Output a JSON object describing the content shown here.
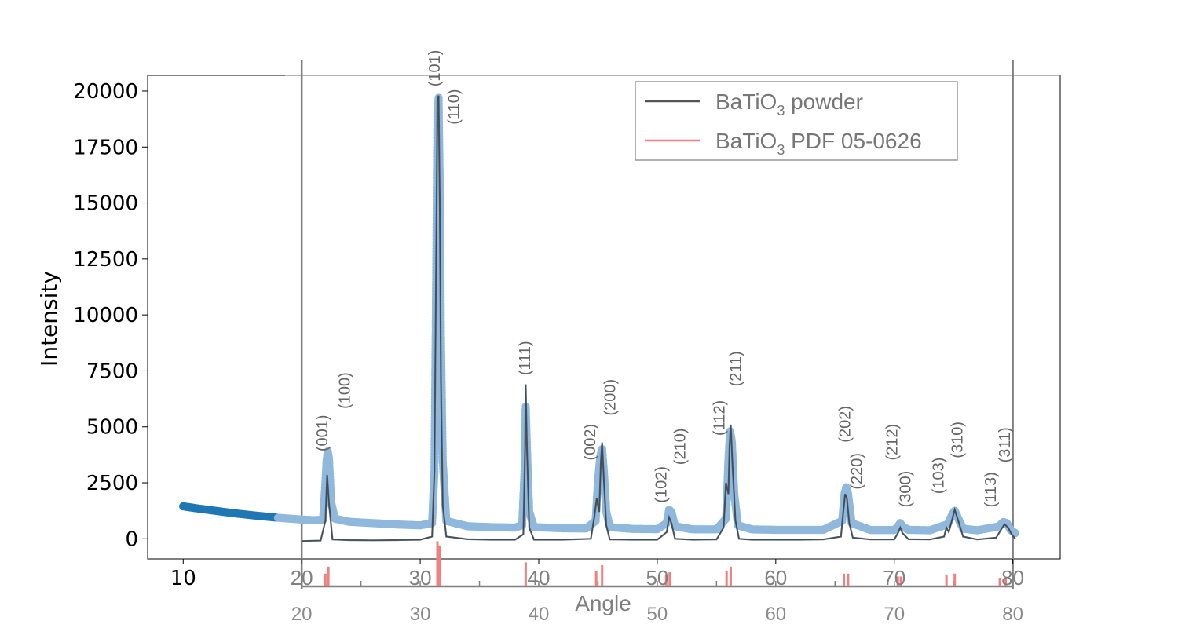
{
  "chart_data": {
    "type": "scatter",
    "title": "",
    "xlabel": "Angle",
    "ylabel": "Intensity",
    "xlim": [
      7,
      84
    ],
    "ylim": [
      -900,
      20700
    ],
    "xticks": [
      10,
      20,
      30,
      40,
      50,
      60,
      70,
      80
    ],
    "yticks": [
      0,
      2500,
      5000,
      7500,
      10000,
      12500,
      15000,
      17500,
      20000
    ],
    "bottom_axis_ticks": [
      20,
      30,
      40,
      50,
      60,
      70,
      80
    ],
    "legend": {
      "position": "top-right",
      "entries": [
        {
          "label_main": "BaTiO",
          "label_sub": "3",
          "label_rest": " powder",
          "color": "#555555"
        },
        {
          "label_main": "BaTiO",
          "label_sub": "3",
          "label_rest": " PDF 05-0626",
          "color": "#f08080"
        }
      ]
    },
    "series": [
      {
        "role": "measured-points",
        "colors": {
          "dark": "#1f77b4",
          "light": "#8fb8dc",
          "split_x": 18
        },
        "points": [
          [
            10,
            1450
          ],
          [
            11,
            1370
          ],
          [
            12,
            1300
          ],
          [
            13,
            1230
          ],
          [
            14,
            1160
          ],
          [
            15,
            1100
          ],
          [
            16,
            1040
          ],
          [
            17,
            990
          ],
          [
            18,
            940
          ],
          [
            19,
            900
          ],
          [
            20,
            860
          ],
          [
            21,
            830
          ],
          [
            21.8,
            850
          ],
          [
            22.0,
            2500
          ],
          [
            22.1,
            3500
          ],
          [
            22.2,
            3900
          ],
          [
            22.3,
            3600
          ],
          [
            22.5,
            1600
          ],
          [
            22.8,
            900
          ],
          [
            24,
            760
          ],
          [
            26,
            700
          ],
          [
            28,
            640
          ],
          [
            30,
            600
          ],
          [
            31.0,
            700
          ],
          [
            31.2,
            3000
          ],
          [
            31.35,
            12000
          ],
          [
            31.45,
            19000
          ],
          [
            31.55,
            19700
          ],
          [
            31.65,
            16000
          ],
          [
            31.75,
            9000
          ],
          [
            31.9,
            3500
          ],
          [
            32.2,
            800
          ],
          [
            34,
            560
          ],
          [
            36,
            520
          ],
          [
            38,
            500
          ],
          [
            38.6,
            600
          ],
          [
            38.8,
            3000
          ],
          [
            38.9,
            5900
          ],
          [
            39.0,
            4200
          ],
          [
            39.2,
            1200
          ],
          [
            39.6,
            520
          ],
          [
            42,
            470
          ],
          [
            44,
            460
          ],
          [
            44.8,
            800
          ],
          [
            45.0,
            2600
          ],
          [
            45.2,
            3700
          ],
          [
            45.35,
            4000
          ],
          [
            45.5,
            3000
          ],
          [
            45.7,
            1200
          ],
          [
            46,
            520
          ],
          [
            48,
            440
          ],
          [
            50,
            430
          ],
          [
            50.8,
            700
          ],
          [
            51.0,
            1300
          ],
          [
            51.2,
            1200
          ],
          [
            51.5,
            560
          ],
          [
            53,
            420
          ],
          [
            55,
            420
          ],
          [
            55.8,
            900
          ],
          [
            56.0,
            3500
          ],
          [
            56.15,
            4800
          ],
          [
            56.3,
            4300
          ],
          [
            56.5,
            2000
          ],
          [
            56.8,
            600
          ],
          [
            58,
            420
          ],
          [
            60,
            400
          ],
          [
            62,
            400
          ],
          [
            64,
            400
          ],
          [
            65.6,
            800
          ],
          [
            65.8,
            2000
          ],
          [
            65.95,
            2300
          ],
          [
            66.1,
            2000
          ],
          [
            66.4,
            700
          ],
          [
            68,
            390
          ],
          [
            70,
            390
          ],
          [
            70.3,
            550
          ],
          [
            70.5,
            700
          ],
          [
            70.7,
            550
          ],
          [
            71.2,
            400
          ],
          [
            73,
            380
          ],
          [
            74.5,
            650
          ],
          [
            74.9,
            1100
          ],
          [
            75.1,
            1250
          ],
          [
            75.4,
            900
          ],
          [
            75.8,
            450
          ],
          [
            77,
            380
          ],
          [
            78.8,
            550
          ],
          [
            79.2,
            750
          ],
          [
            79.5,
            700
          ],
          [
            79.8,
            400
          ],
          [
            80.2,
            250
          ]
        ]
      },
      {
        "role": "powder-line",
        "name": "BaTiO3 powder",
        "color": "#555555",
        "points": [
          [
            20,
            -100
          ],
          [
            21.6,
            -80
          ],
          [
            22.0,
            800
          ],
          [
            22.15,
            2850
          ],
          [
            22.3,
            1600
          ],
          [
            22.6,
            -30
          ],
          [
            24,
            -60
          ],
          [
            26,
            -70
          ],
          [
            28,
            -60
          ],
          [
            30,
            -40
          ],
          [
            31.0,
            100
          ],
          [
            31.2,
            3000
          ],
          [
            31.35,
            13000
          ],
          [
            31.45,
            19600
          ],
          [
            31.55,
            19800
          ],
          [
            31.65,
            15000
          ],
          [
            31.75,
            7000
          ],
          [
            31.9,
            1500
          ],
          [
            32.2,
            100
          ],
          [
            34,
            -20
          ],
          [
            36,
            -40
          ],
          [
            38,
            -40
          ],
          [
            38.7,
            200
          ],
          [
            38.85,
            4000
          ],
          [
            38.9,
            6900
          ],
          [
            39.0,
            4200
          ],
          [
            39.2,
            500
          ],
          [
            39.6,
            -40
          ],
          [
            42,
            -40
          ],
          [
            44.4,
            0
          ],
          [
            44.7,
            1000
          ],
          [
            44.9,
            1800
          ],
          [
            45.1,
            1200
          ],
          [
            45.25,
            3500
          ],
          [
            45.35,
            4300
          ],
          [
            45.5,
            2600
          ],
          [
            45.7,
            600
          ],
          [
            46,
            -30
          ],
          [
            48,
            -40
          ],
          [
            50,
            -40
          ],
          [
            50.8,
            300
          ],
          [
            51.0,
            950
          ],
          [
            51.2,
            700
          ],
          [
            51.5,
            0
          ],
          [
            53,
            -40
          ],
          [
            55,
            -30
          ],
          [
            55.6,
            500
          ],
          [
            55.8,
            2500
          ],
          [
            56.0,
            2000
          ],
          [
            56.1,
            4200
          ],
          [
            56.2,
            5100
          ],
          [
            56.35,
            3300
          ],
          [
            56.6,
            800
          ],
          [
            56.9,
            0
          ],
          [
            58,
            -40
          ],
          [
            60,
            -40
          ],
          [
            62,
            -40
          ],
          [
            64,
            -30
          ],
          [
            65.5,
            100
          ],
          [
            65.7,
            1200
          ],
          [
            65.85,
            2000
          ],
          [
            66.0,
            1800
          ],
          [
            66.2,
            700
          ],
          [
            66.5,
            50
          ],
          [
            68,
            -30
          ],
          [
            70,
            -30
          ],
          [
            70.3,
            250
          ],
          [
            70.5,
            500
          ],
          [
            70.7,
            250
          ],
          [
            71.2,
            -20
          ],
          [
            73,
            -30
          ],
          [
            74.2,
            100
          ],
          [
            74.4,
            500
          ],
          [
            74.6,
            300
          ],
          [
            74.9,
            900
          ],
          [
            75.1,
            1300
          ],
          [
            75.4,
            800
          ],
          [
            75.8,
            100
          ],
          [
            77,
            -30
          ],
          [
            78.6,
            50
          ],
          [
            79.0,
            400
          ],
          [
            79.3,
            650
          ],
          [
            79.6,
            500
          ],
          [
            79.9,
            200
          ],
          [
            80.2,
            0
          ]
        ]
      }
    ],
    "reference_lines": [
      {
        "x": 22.0,
        "h": 0.9
      },
      {
        "x": 22.25,
        "h": 1.4
      },
      {
        "x": 31.45,
        "h": 3.2
      },
      {
        "x": 31.65,
        "h": 2.9
      },
      {
        "x": 38.9,
        "h": 1.7
      },
      {
        "x": 44.85,
        "h": 1.1
      },
      {
        "x": 45.35,
        "h": 1.5
      },
      {
        "x": 50.75,
        "h": 0.8
      },
      {
        "x": 51.05,
        "h": 1.0
      },
      {
        "x": 55.85,
        "h": 1.1
      },
      {
        "x": 56.2,
        "h": 1.4
      },
      {
        "x": 65.75,
        "h": 0.9
      },
      {
        "x": 66.1,
        "h": 0.9
      },
      {
        "x": 70.3,
        "h": 0.7
      },
      {
        "x": 70.55,
        "h": 0.7
      },
      {
        "x": 74.4,
        "h": 0.8
      },
      {
        "x": 75.1,
        "h": 0.9
      },
      {
        "x": 78.9,
        "h": 0.6
      },
      {
        "x": 79.4,
        "h": 0.6
      }
    ],
    "peak_labels": [
      {
        "text": "(001)",
        "x": 21.7,
        "y": 3900
      },
      {
        "text": "(100)",
        "x": 23.6,
        "y": 5800
      },
      {
        "text": "(101)",
        "x": 31.2,
        "y": 20200
      },
      {
        "text": "(110)",
        "x": 32.8,
        "y": 18500
      },
      {
        "text": "(111)",
        "x": 38.8,
        "y": 7300
      },
      {
        "text": "(002)",
        "x": 44.3,
        "y": 3500
      },
      {
        "text": "(200)",
        "x": 46.0,
        "y": 5500
      },
      {
        "text": "(102)",
        "x": 50.3,
        "y": 1600
      },
      {
        "text": "(210)",
        "x": 51.9,
        "y": 3300
      },
      {
        "text": "(112)",
        "x": 55.2,
        "y": 4600
      },
      {
        "text": "(211)",
        "x": 56.6,
        "y": 6800
      },
      {
        "text": "(202)",
        "x": 65.8,
        "y": 4300
      },
      {
        "text": "(220)",
        "x": 66.8,
        "y": 2200
      },
      {
        "text": "(212)",
        "x": 69.8,
        "y": 3500
      },
      {
        "text": "(300)",
        "x": 70.9,
        "y": 1400
      },
      {
        "text": "(103)",
        "x": 73.7,
        "y": 2000
      },
      {
        "text": "(310)",
        "x": 75.3,
        "y": 3600
      },
      {
        "text": "(113)",
        "x": 78.1,
        "y": 1400
      },
      {
        "text": "(311)",
        "x": 79.3,
        "y": 3400
      }
    ]
  }
}
